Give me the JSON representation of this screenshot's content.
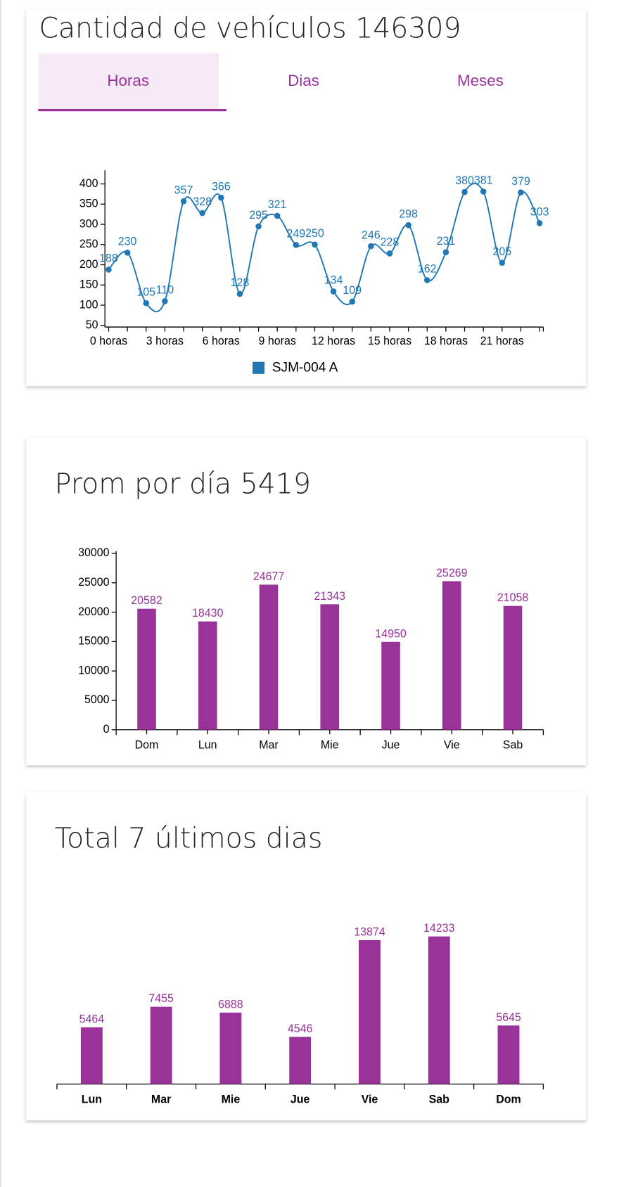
{
  "tabs": [
    "Horas",
    "Dias",
    "Meses"
  ],
  "chart_data": [
    {
      "type": "line",
      "title": "Cantidad de vehículos 146309",
      "categories": [
        "0 horas",
        null,
        null,
        "3 horas",
        null,
        null,
        "6 horas",
        null,
        null,
        "9 horas",
        null,
        null,
        "12 horas",
        null,
        null,
        "15 horas",
        null,
        null,
        "18 horas",
        null,
        null,
        "21 horas",
        null,
        null
      ],
      "series": [
        {
          "name": "SJM-004 A",
          "color": "#1f77b4",
          "values": [
            188,
            230,
            105,
            110,
            357,
            328,
            366,
            128,
            295,
            321,
            249,
            250,
            134,
            109,
            246,
            228,
            298,
            162,
            231,
            380,
            381,
            205,
            379,
            303
          ]
        }
      ],
      "ylim": [
        46,
        428
      ],
      "yticks": [
        50,
        100,
        150,
        200,
        250,
        300,
        350,
        400
      ]
    },
    {
      "type": "bar",
      "title": "Prom por día 5419",
      "categories": [
        "Dom",
        "Lun",
        "Mar",
        "Mie",
        "Jue",
        "Vie",
        "Sab"
      ],
      "values": [
        20582,
        18430,
        24677,
        21343,
        14950,
        25269,
        21058
      ],
      "color": "#993399",
      "ylim": [
        0,
        30000
      ],
      "yticks": [
        0,
        5000,
        10000,
        15000,
        20000,
        25000,
        30000
      ]
    },
    {
      "type": "bar",
      "title": "Total 7 últimos dias",
      "categories": [
        "Lun",
        "Mar",
        "Mie",
        "Jue",
        "Vie",
        "Sab",
        "Dom"
      ],
      "values": [
        5464,
        7455,
        6888,
        4546,
        13874,
        14233,
        5645
      ],
      "color": "#993399"
    }
  ]
}
